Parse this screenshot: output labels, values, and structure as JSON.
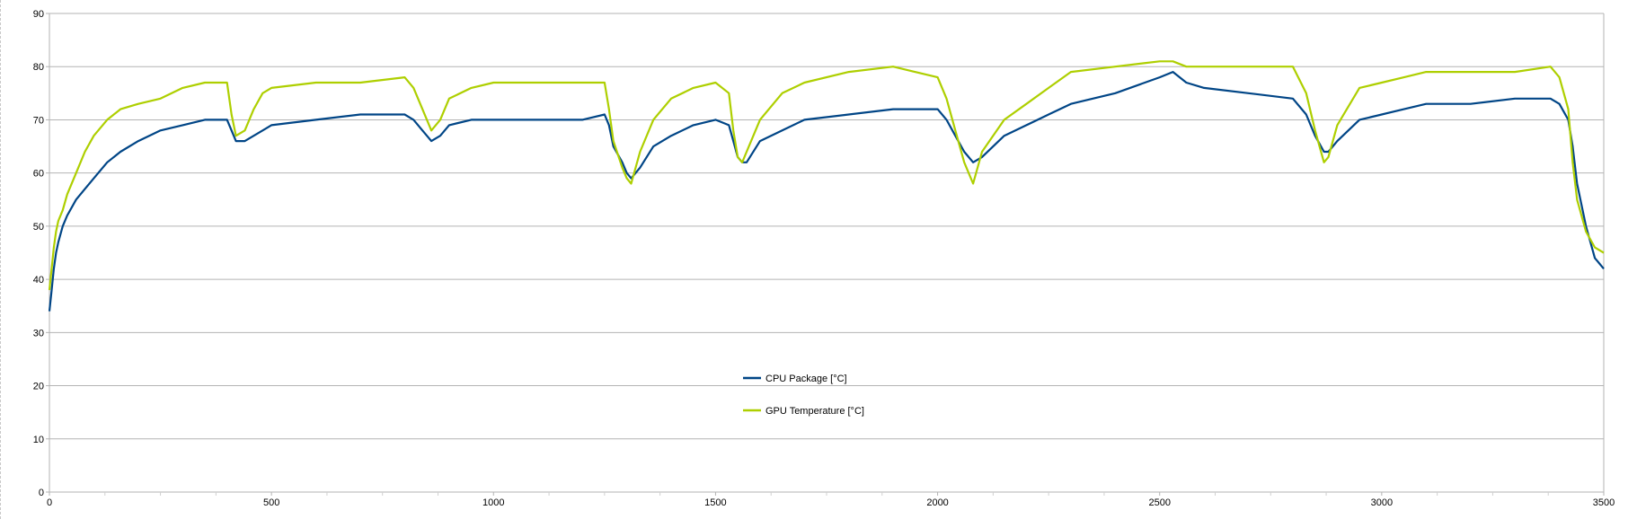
{
  "chart_data": {
    "type": "line",
    "title": "",
    "xlabel": "",
    "ylabel": "",
    "xlim": [
      0,
      3500
    ],
    "ylim": [
      0,
      90
    ],
    "x_ticks": [
      0,
      500,
      1000,
      1500,
      2000,
      2500,
      3000,
      3500
    ],
    "y_ticks": [
      0,
      10,
      20,
      30,
      40,
      50,
      60,
      70,
      80,
      90
    ],
    "grid": {
      "horizontal": true,
      "vertical": false
    },
    "legend_position": "center-lower",
    "series": [
      {
        "name": "CPU Package [°C]",
        "color": "#004586",
        "x": [
          0,
          5,
          10,
          15,
          20,
          30,
          40,
          60,
          80,
          100,
          130,
          160,
          200,
          250,
          300,
          350,
          400,
          410,
          420,
          440,
          460,
          480,
          500,
          600,
          700,
          800,
          820,
          840,
          860,
          880,
          900,
          950,
          1000,
          1100,
          1200,
          1250,
          1260,
          1270,
          1290,
          1300,
          1310,
          1330,
          1360,
          1400,
          1450,
          1500,
          1530,
          1540,
          1550,
          1560,
          1570,
          1600,
          1650,
          1700,
          1800,
          1900,
          2000,
          2020,
          2040,
          2060,
          2080,
          2100,
          2150,
          2200,
          2250,
          2300,
          2400,
          2500,
          2530,
          2560,
          2600,
          2700,
          2800,
          2830,
          2850,
          2870,
          2880,
          2900,
          2950,
          3000,
          3050,
          3100,
          3200,
          3300,
          3380,
          3400,
          3420,
          3430,
          3440,
          3460,
          3480,
          3500
        ],
        "y": [
          34,
          38,
          42,
          45,
          47,
          50,
          52,
          55,
          57,
          59,
          62,
          64,
          66,
          68,
          69,
          70,
          70,
          68,
          66,
          66,
          67,
          68,
          69,
          70,
          71,
          71,
          70,
          68,
          66,
          67,
          69,
          70,
          70,
          70,
          70,
          71,
          69,
          65,
          62,
          60,
          59,
          61,
          65,
          67,
          69,
          70,
          69,
          66,
          63,
          62,
          62,
          66,
          68,
          70,
          71,
          72,
          72,
          70,
          67,
          64,
          62,
          63,
          67,
          69,
          71,
          73,
          75,
          78,
          79,
          77,
          76,
          75,
          74,
          71,
          67,
          64,
          64,
          66,
          70,
          71,
          72,
          73,
          73,
          74,
          74,
          73,
          70,
          65,
          58,
          50,
          44,
          42
        ]
      },
      {
        "name": "GPU Temperature [°C]",
        "color": "#aecf00",
        "x": [
          0,
          5,
          10,
          15,
          20,
          30,
          40,
          60,
          80,
          100,
          130,
          160,
          200,
          250,
          300,
          350,
          400,
          410,
          420,
          440,
          460,
          480,
          500,
          600,
          700,
          800,
          820,
          840,
          860,
          880,
          900,
          950,
          1000,
          1100,
          1200,
          1250,
          1260,
          1270,
          1290,
          1300,
          1310,
          1330,
          1360,
          1400,
          1450,
          1500,
          1530,
          1540,
          1550,
          1560,
          1570,
          1600,
          1650,
          1700,
          1800,
          1900,
          2000,
          2020,
          2040,
          2060,
          2080,
          2100,
          2150,
          2200,
          2250,
          2300,
          2400,
          2500,
          2530,
          2560,
          2600,
          2700,
          2800,
          2830,
          2850,
          2870,
          2880,
          2900,
          2950,
          3000,
          3050,
          3100,
          3200,
          3300,
          3380,
          3400,
          3420,
          3430,
          3440,
          3460,
          3480,
          3500
        ],
        "y": [
          38,
          42,
          46,
          49,
          51,
          53,
          56,
          60,
          64,
          67,
          70,
          72,
          73,
          74,
          76,
          77,
          77,
          71,
          67,
          68,
          72,
          75,
          76,
          77,
          77,
          78,
          76,
          72,
          68,
          70,
          74,
          76,
          77,
          77,
          77,
          77,
          72,
          66,
          61,
          59,
          58,
          64,
          70,
          74,
          76,
          77,
          75,
          68,
          63,
          62,
          64,
          70,
          75,
          77,
          79,
          80,
          78,
          74,
          68,
          62,
          58,
          64,
          70,
          73,
          76,
          79,
          80,
          81,
          81,
          80,
          80,
          80,
          80,
          75,
          68,
          62,
          63,
          69,
          76,
          77,
          78,
          79,
          79,
          79,
          80,
          78,
          72,
          62,
          55,
          49,
          46,
          45
        ]
      }
    ]
  }
}
